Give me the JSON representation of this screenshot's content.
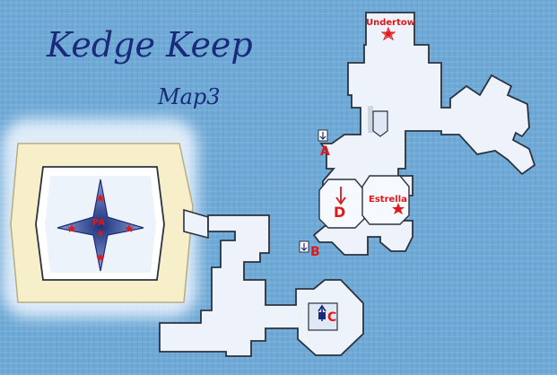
{
  "map": {
    "title": "Kedge Keep",
    "subtitle": "Map3",
    "colors": {
      "water": "#6fa9d6",
      "floor": "#eef3fb",
      "outline": "#2a3340",
      "marker": "#e21818",
      "sand": "#f6efc9"
    },
    "labels": {
      "undertow": "Undertow",
      "estrella": "Estrella",
      "pa": "PA",
      "a": "A",
      "b": "B",
      "c": "C",
      "d": "D"
    },
    "icons": [
      "star-icon",
      "down-arrow-icon",
      "up-arrow-icon",
      "anchor-icon",
      "compass-star-icon"
    ]
  }
}
